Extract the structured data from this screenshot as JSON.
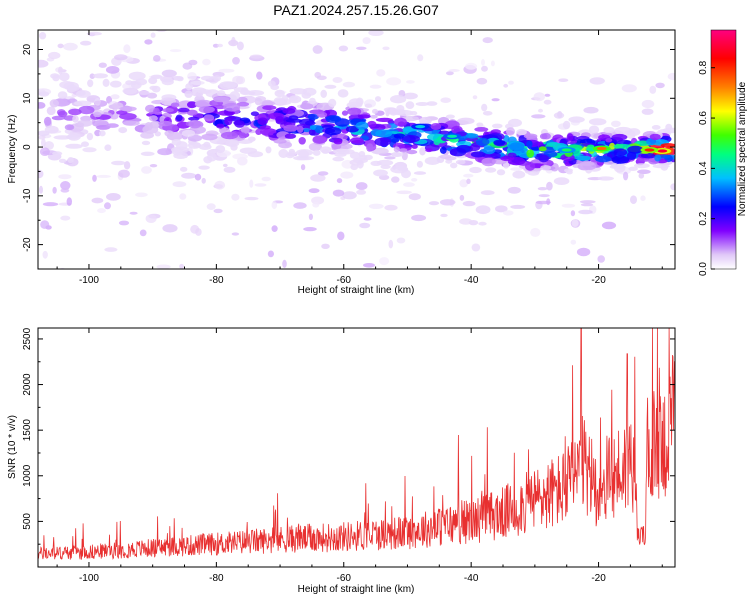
{
  "title": "PAZ1.2024.257.15.26.G07",
  "chart_data": [
    {
      "type": "heatmap",
      "name": "spectrogram",
      "xlabel": "Height of straight line (km)",
      "ylabel": "Frequency (Hz)",
      "xlim": [
        -108,
        -8
      ],
      "ylim": [
        -25,
        24
      ],
      "xticks": [
        -100,
        -80,
        -60,
        -40,
        -20
      ],
      "yticks": [
        -20,
        -10,
        0,
        10,
        20
      ],
      "ridge": {
        "description_points_x": [
          -100,
          -90,
          -80,
          -70,
          -60,
          -50,
          -40,
          -30,
          -20,
          -10
        ],
        "description_points_y": [
          6.5,
          6.5,
          6.0,
          5.0,
          4.0,
          2.5,
          1.0,
          -1.0,
          -0.5,
          -0.5
        ]
      },
      "colorbar": {
        "label": "Normalized spectral amplitude",
        "range": [
          0,
          0.95
        ],
        "ticks": [
          0.0,
          0.2,
          0.4,
          0.6,
          0.8
        ],
        "tick_labels": [
          "0.0",
          "0.2",
          "0.4",
          "0.6",
          "0.8"
        ],
        "colormap": [
          "#ffffff",
          "#e0c8f8",
          "#8000ff",
          "#0000ff",
          "#00c0ff",
          "#00ff80",
          "#40ff00",
          "#ffff00",
          "#ff8000",
          "#ff0000",
          "#ff0080"
        ]
      }
    },
    {
      "type": "line",
      "name": "snr",
      "xlabel": "Height of straight line (km)",
      "ylabel": "SNR (10 * v/v)",
      "xlim": [
        -108,
        -8
      ],
      "ylim": [
        0,
        2620
      ],
      "xticks": [
        -100,
        -80,
        -60,
        -40,
        -20
      ],
      "yticks": [
        500,
        1000,
        1500,
        2000,
        2500
      ],
      "color": "#e83030",
      "envelope_x": [
        -108,
        -100,
        -90,
        -80,
        -70,
        -60,
        -50,
        -40,
        -35,
        -30,
        -25,
        -22.5,
        -20,
        -15,
        -12,
        -10,
        -8
      ],
      "envelope_y": [
        180,
        200,
        250,
        300,
        350,
        380,
        430,
        560,
        650,
        800,
        950,
        1200,
        900,
        1250,
        1350,
        1450,
        1500
      ]
    }
  ]
}
